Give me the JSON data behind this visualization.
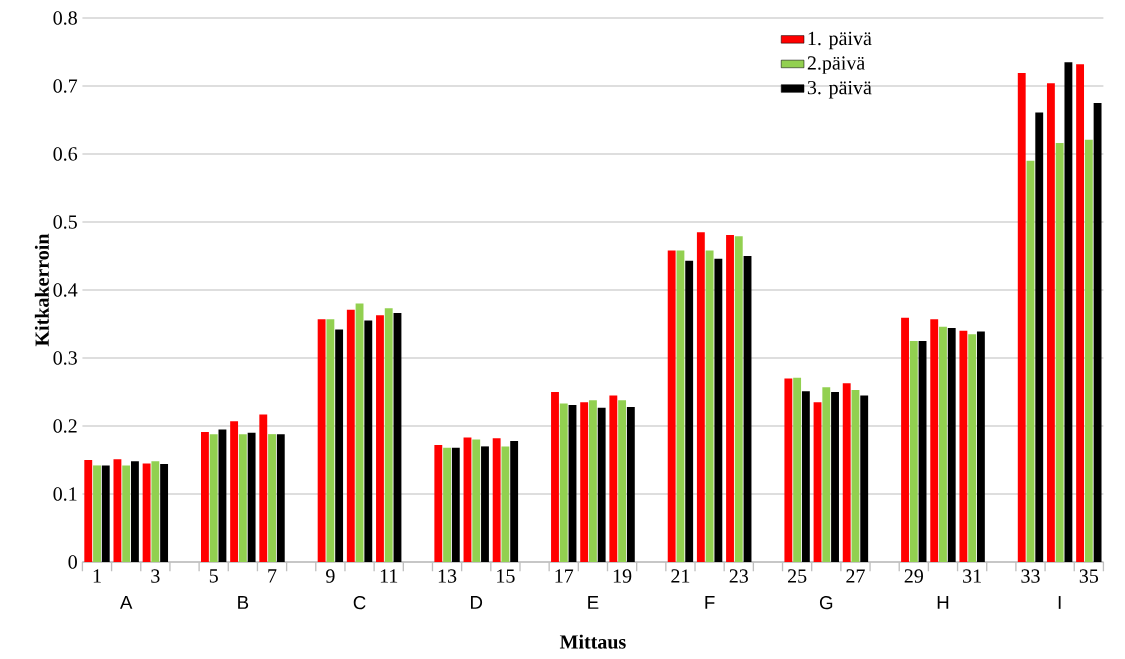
{
  "chart_data": {
    "type": "bar",
    "xlabel": "Mittaus",
    "ylabel": "Kitkakerroin",
    "categories": [
      "1",
      null,
      "3",
      null,
      "5",
      null,
      "7",
      null,
      "9",
      null,
      "11",
      null,
      "13",
      null,
      "15",
      null,
      "17",
      null,
      "19",
      null,
      "21",
      null,
      "23",
      null,
      "25",
      null,
      "27",
      null,
      "29",
      null,
      "31",
      null,
      "33",
      null,
      "35"
    ],
    "series": [
      {
        "name": "1. päivä",
        "color": "#ff0000",
        "values": [
          0.15,
          0.151,
          0.145,
          null,
          0.191,
          0.207,
          0.217,
          null,
          0.357,
          0.371,
          0.363,
          null,
          0.172,
          0.183,
          0.182,
          null,
          0.25,
          0.235,
          0.245,
          null,
          0.458,
          0.485,
          0.481,
          null,
          0.27,
          0.235,
          0.263,
          null,
          0.359,
          0.357,
          0.34,
          null,
          0.719,
          0.704,
          0.732
        ]
      },
      {
        "name": "2.päivä",
        "color": "#92d050",
        "values": [
          0.142,
          0.142,
          0.148,
          null,
          0.188,
          0.188,
          0.188,
          null,
          0.357,
          0.38,
          0.373,
          null,
          0.168,
          0.18,
          0.17,
          null,
          0.233,
          0.238,
          0.238,
          null,
          0.458,
          0.458,
          0.479,
          null,
          0.271,
          0.257,
          0.253,
          null,
          0.325,
          0.346,
          0.335,
          null,
          0.59,
          0.616,
          0.621
        ]
      },
      {
        "name": "3. päivä",
        "color": "#000000",
        "values": [
          0.142,
          0.148,
          0.144,
          null,
          0.195,
          0.19,
          0.188,
          null,
          0.342,
          0.355,
          0.366,
          null,
          0.168,
          0.17,
          0.178,
          null,
          0.231,
          0.227,
          0.228,
          null,
          0.443,
          0.446,
          0.45,
          null,
          0.251,
          0.25,
          0.245,
          null,
          0.325,
          0.344,
          0.339,
          null,
          0.661,
          0.735,
          0.675
        ]
      }
    ],
    "annotations": [
      "A",
      "B",
      "C",
      "D",
      "E",
      "F",
      "G",
      "H",
      "I"
    ],
    "ylim": [
      0,
      0.8
    ],
    "yticks": [
      0,
      0.1,
      0.2,
      0.3,
      0.4,
      0.5,
      0.6,
      0.7,
      0.8
    ],
    "grid": "y",
    "legend": "top right"
  }
}
